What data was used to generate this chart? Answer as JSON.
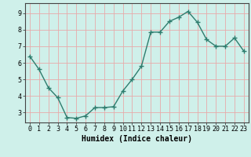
{
  "xlabel": "Humidex (Indice chaleur)",
  "x": [
    0,
    1,
    2,
    3,
    4,
    5,
    6,
    7,
    8,
    9,
    10,
    11,
    12,
    13,
    14,
    15,
    16,
    17,
    18,
    19,
    20,
    21,
    22,
    23
  ],
  "y": [
    6.4,
    5.6,
    4.5,
    3.9,
    2.7,
    2.65,
    2.8,
    3.3,
    3.3,
    3.35,
    4.3,
    5.0,
    5.8,
    7.85,
    7.85,
    8.5,
    8.75,
    9.1,
    8.45,
    7.4,
    7.0,
    7.0,
    7.5,
    6.7
  ],
  "line_color": "#2e7d6e",
  "marker": "+",
  "marker_size": 4,
  "bg_color": "#cff0ea",
  "grid_color": "#e8aaaa",
  "ylim": [
    2.4,
    9.6
  ],
  "yticks": [
    3,
    4,
    5,
    6,
    7,
    8,
    9
  ],
  "xlim": [
    -0.5,
    23.5
  ],
  "label_fontsize": 7,
  "tick_fontsize": 6,
  "line_width": 1.0
}
